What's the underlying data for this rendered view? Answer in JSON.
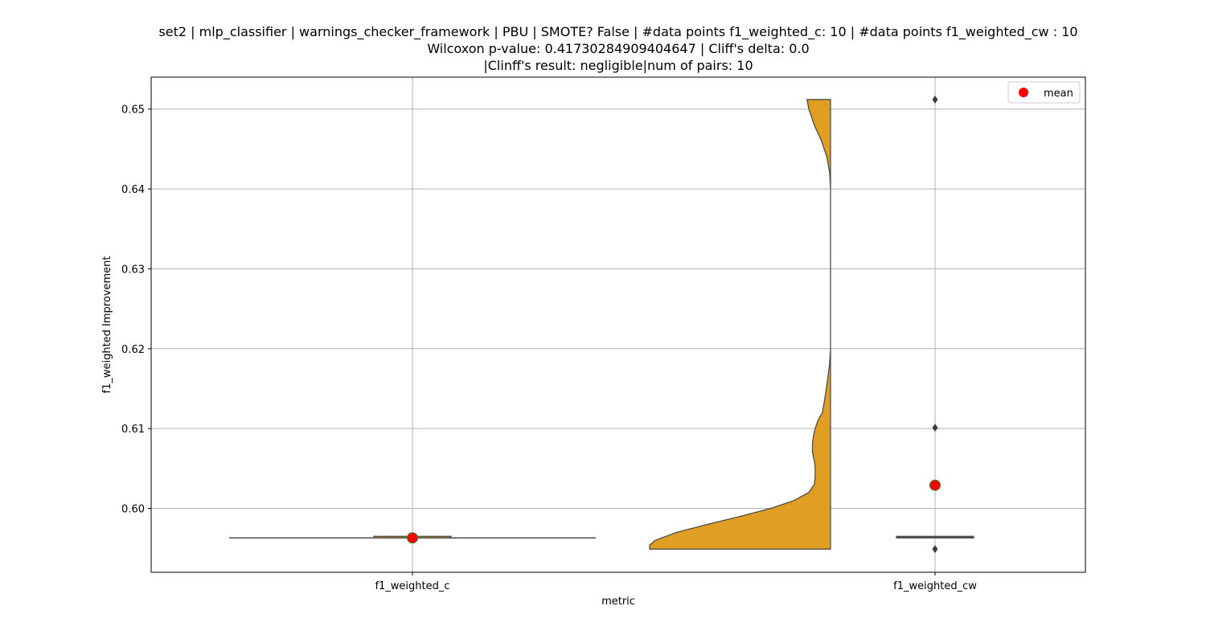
{
  "chart_data": {
    "type": "violin",
    "title_lines": [
      "set2 | mlp_classifier | warnings_checker_framework | PBU | SMOTE? False | #data points f1_weighted_c: 10 | #data points f1_weighted_cw : 10",
      "Wilcoxon p-value: 0.41730284909404647 | Cliff's delta: 0.0",
      "|Clinff's result: negligible|num of pairs: 10"
    ],
    "xlabel": "metric",
    "ylabel": "f1_weighted Improvement",
    "categories": [
      "f1_weighted_c",
      "f1_weighted_cw"
    ],
    "ylim": [
      0.592,
      0.654
    ],
    "yticks": [
      0.6,
      0.61,
      0.62,
      0.63,
      0.64,
      0.65
    ],
    "ytick_labels": [
      "0.60",
      "0.61",
      "0.62",
      "0.63",
      "0.64",
      "0.65"
    ],
    "grid": true,
    "legend": {
      "position": "top-right",
      "entries": [
        {
          "label": "mean",
          "color": "#ff0000"
        }
      ]
    },
    "violin_color": "#e09e23",
    "series": [
      {
        "name": "f1_weighted_c",
        "median": 0.5963,
        "q1": 0.5963,
        "q3": 0.5964,
        "whisker_low": 0.5963,
        "whisker_high": 0.5964,
        "mean": 0.5963,
        "outliers": []
      },
      {
        "name": "f1_weighted_cw",
        "median": 0.5964,
        "q1": 0.5963,
        "q3": 0.5964,
        "whisker_low": 0.5963,
        "whisker_high": 0.5964,
        "mean": 0.6029,
        "outliers": [
          0.5949,
          0.6101,
          0.6512
        ],
        "density": [
          [
            0.5949,
            1.0
          ],
          [
            0.5954,
            1.0
          ],
          [
            0.596,
            0.97
          ],
          [
            0.597,
            0.85
          ],
          [
            0.598,
            0.68
          ],
          [
            0.599,
            0.5
          ],
          [
            0.6,
            0.33
          ],
          [
            0.601,
            0.2
          ],
          [
            0.602,
            0.12
          ],
          [
            0.603,
            0.09
          ],
          [
            0.604,
            0.085
          ],
          [
            0.605,
            0.085
          ],
          [
            0.606,
            0.09
          ],
          [
            0.607,
            0.1
          ],
          [
            0.608,
            0.1
          ],
          [
            0.609,
            0.095
          ],
          [
            0.61,
            0.085
          ],
          [
            0.611,
            0.07
          ],
          [
            0.612,
            0.045
          ],
          [
            0.614,
            0.03
          ],
          [
            0.616,
            0.017
          ],
          [
            0.618,
            0.006
          ],
          [
            0.62,
            0.0
          ],
          [
            0.64,
            0.0
          ],
          [
            0.642,
            0.005
          ],
          [
            0.644,
            0.02
          ],
          [
            0.646,
            0.05
          ],
          [
            0.648,
            0.09
          ],
          [
            0.65,
            0.12
          ],
          [
            0.6512,
            0.13
          ]
        ]
      }
    ]
  }
}
